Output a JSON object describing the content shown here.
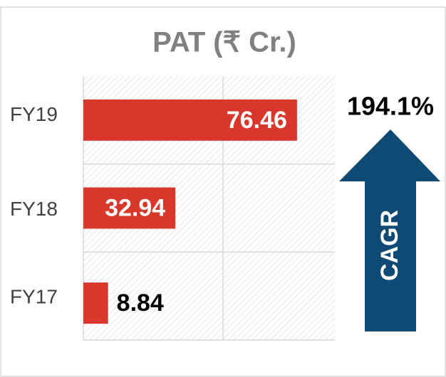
{
  "chart_data": {
    "type": "hbar",
    "title": "PAT (₹ Cr.)",
    "categories": [
      "FY19",
      "FY18",
      "FY17"
    ],
    "values": [
      76.46,
      32.94,
      8.84
    ],
    "color": "#d9372b",
    "xlim": [
      0,
      90
    ],
    "xticks": [
      0,
      50
    ],
    "grid": true,
    "annotations": {
      "growth": "194.1%",
      "arrow_label": "CAGR"
    }
  }
}
